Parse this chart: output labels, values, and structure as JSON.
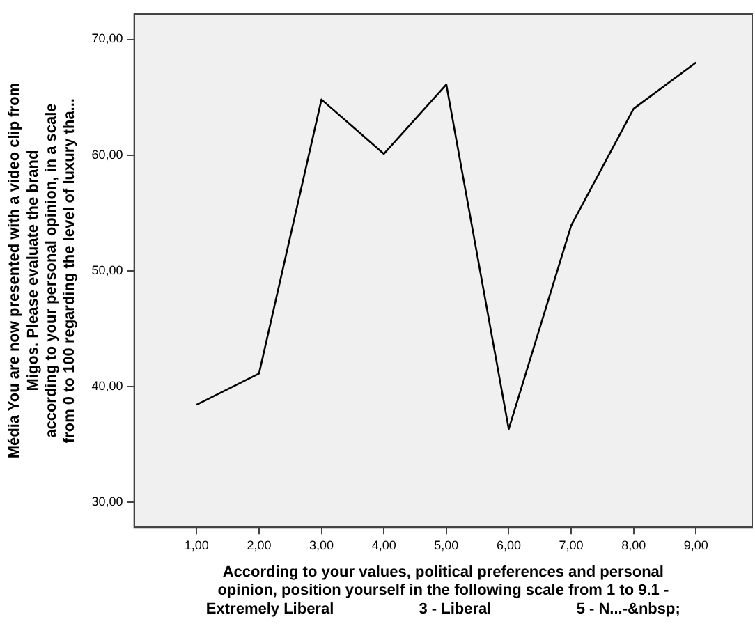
{
  "chart_data": {
    "type": "line",
    "xlabel": "According to your values, political preferences and personal\nopinion, position yourself in the following scale from 1 to 9.1 -\nExtremely Liberal                    3 - Liberal                    5 - N...-&nbsp;",
    "ylabel": "Média You are now presented with a video clip from\nMigos. Please evaluate the brand\naccording to your personal opinion, in a scale\nfrom 0 to 100 regarding the level of luxury tha...",
    "x": [
      1,
      2,
      3,
      4,
      5,
      6,
      7,
      8,
      9
    ],
    "series": [
      {
        "color": "#000000",
        "values": [
          38.4,
          41.1,
          64.8,
          60.1,
          66.1,
          36.3,
          53.9,
          64.0,
          68.0
        ]
      }
    ],
    "xlim": [
      0,
      9.9
    ],
    "xticks": [
      {
        "value": 1,
        "label": "1,00"
      },
      {
        "value": 2,
        "label": "2,00"
      },
      {
        "value": 3,
        "label": "3,00"
      },
      {
        "value": 4,
        "label": "4,00"
      },
      {
        "value": 5,
        "label": "5,00"
      },
      {
        "value": 6,
        "label": "6,00"
      },
      {
        "value": 7,
        "label": "7,00"
      },
      {
        "value": 8,
        "label": "8,00"
      },
      {
        "value": 9,
        "label": "9,00"
      }
    ],
    "ylim": [
      27.8,
      72.2
    ],
    "yticks": [
      {
        "value": 30,
        "label": "30,00"
      },
      {
        "value": 40,
        "label": "40,00"
      },
      {
        "value": 50,
        "label": "50,00"
      },
      {
        "value": 60,
        "label": "60,00"
      },
      {
        "value": 70,
        "label": "70,00"
      }
    ],
    "grid": false,
    "legend": false,
    "marker": "none",
    "line_style": "solid"
  }
}
